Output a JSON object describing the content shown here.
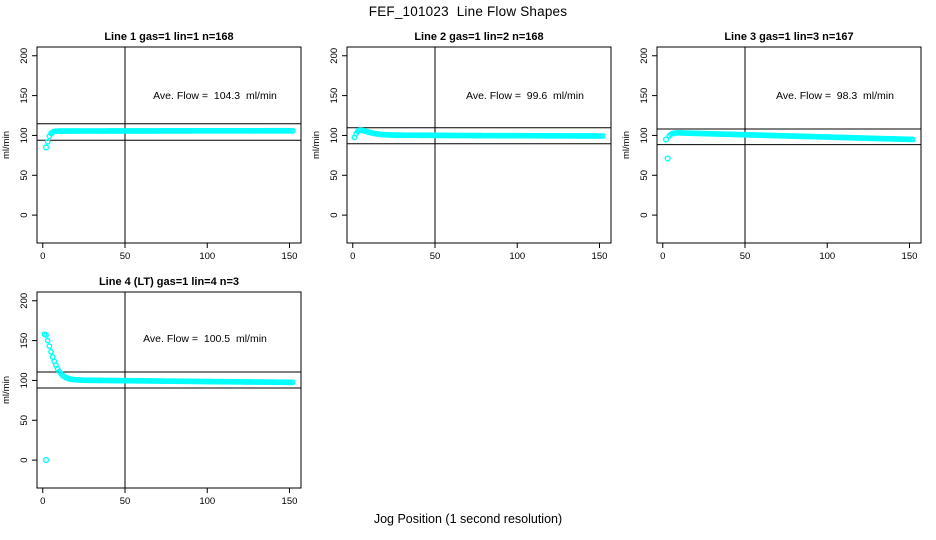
{
  "figure": {
    "title": "FEF_101023  Line Flow Shapes",
    "xlabel": "Jog Position (1 second resolution)",
    "background_color": "#ffffff",
    "axis_color": "#000000",
    "point_color": "#00ffff"
  },
  "chart_data": {
    "type": "scatter",
    "title": "FEF_101023  Line Flow Shapes",
    "xlabel": "Jog Position (1 second resolution)",
    "ylabel": "ml/min",
    "xlim": [
      -3.5,
      157
    ],
    "ylim": [
      -35,
      211
    ],
    "xticks": [
      0,
      50,
      100,
      150
    ],
    "yticks": [
      0,
      50,
      100,
      150,
      200
    ],
    "grid": false,
    "vline_x": 50,
    "point_color": "#00ffff",
    "subplots": [
      {
        "title": "Line 1 gas=1 lin=1 n=168",
        "annotation": "Ave. Flow =  104.3  ml/min",
        "ave_flow": 104.3,
        "n": 168,
        "hline_upper": 114.7,
        "hline_lower": 93.9,
        "x_start": 3,
        "x_end": 152,
        "outliers": [
          [
            2,
            85
          ]
        ],
        "series_keypoints": [
          [
            3,
            92
          ],
          [
            4,
            99
          ],
          [
            5,
            102.5
          ],
          [
            6,
            104.2
          ],
          [
            7,
            105
          ],
          [
            8,
            105.3
          ],
          [
            10,
            105.5
          ],
          [
            30,
            105.6
          ],
          [
            80,
            105.7
          ],
          [
            152,
            105.8
          ]
        ]
      },
      {
        "title": "Line 2 gas=1 lin=2 n=168",
        "annotation": "Ave. Flow =  99.6  ml/min",
        "ave_flow": 99.6,
        "n": 168,
        "hline_upper": 109.6,
        "hline_lower": 89.6,
        "x_start": 1,
        "x_end": 152,
        "outliers": [],
        "series_keypoints": [
          [
            1,
            97.5
          ],
          [
            2,
            102
          ],
          [
            3,
            105
          ],
          [
            4,
            106.3
          ],
          [
            5,
            106.5
          ],
          [
            6,
            106.2
          ],
          [
            8,
            105.1
          ],
          [
            10,
            103.9
          ],
          [
            12,
            102.9
          ],
          [
            15,
            101.8
          ],
          [
            18,
            101.1
          ],
          [
            21,
            100.7
          ],
          [
            25,
            100.4
          ],
          [
            30,
            100.3
          ],
          [
            50,
            100.1
          ],
          [
            80,
            99.8
          ],
          [
            110,
            99.6
          ],
          [
            152,
            99.3
          ]
        ]
      },
      {
        "title": "Line 3 gas=1 lin=3 n=167",
        "annotation": "Ave. Flow =  98.3  ml/min",
        "ave_flow": 98.3,
        "n": 167,
        "hline_upper": 108.1,
        "hline_lower": 88.5,
        "x_start": 4,
        "x_end": 152,
        "outliers": [
          [
            2,
            95
          ],
          [
            3,
            71
          ]
        ],
        "series_keypoints": [
          [
            4,
            99.5
          ],
          [
            5,
            101.5
          ],
          [
            6,
            102.4
          ],
          [
            8,
            103.1
          ],
          [
            10,
            103.2
          ],
          [
            30,
            102.0
          ],
          [
            50,
            100.9
          ],
          [
            70,
            99.7
          ],
          [
            100,
            98.0
          ],
          [
            130,
            96.2
          ],
          [
            152,
            95.0
          ]
        ]
      },
      {
        "title": "Line 4 (LT) gas=1 lin=4 n=3",
        "annotation": "Ave. Flow =  100.5  ml/min",
        "ave_flow": 100.5,
        "n": 3,
        "hline_upper": 110.6,
        "hline_lower": 90.5,
        "x_start": 1,
        "x_end": 152,
        "outliers": [
          [
            2,
            0
          ]
        ],
        "series_keypoints": [
          [
            1,
            158
          ],
          [
            2,
            157
          ],
          [
            3,
            150
          ],
          [
            4,
            143
          ],
          [
            5,
            136
          ],
          [
            6,
            129.5
          ],
          [
            7,
            124
          ],
          [
            8,
            119
          ],
          [
            9,
            114.8
          ],
          [
            10,
            111.3
          ],
          [
            12,
            106.3
          ],
          [
            14,
            103.6
          ],
          [
            16,
            102.1
          ],
          [
            18,
            101.2
          ],
          [
            20,
            100.8
          ],
          [
            25,
            100.3
          ],
          [
            30,
            100.1
          ],
          [
            60,
            99.5
          ],
          [
            100,
            98.6
          ],
          [
            152,
            97.6
          ]
        ]
      }
    ]
  }
}
